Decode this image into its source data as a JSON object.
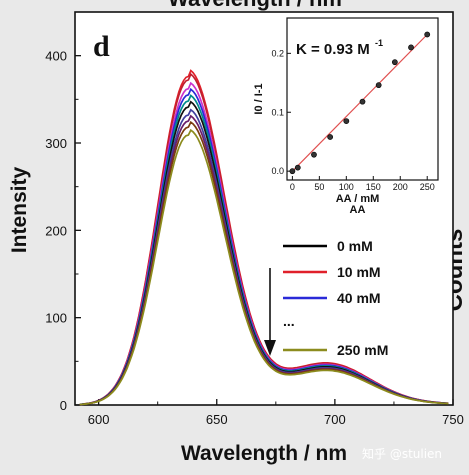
{
  "top_title_cutoff": "Wavelength / nm",
  "right_label_cutoff": "Counts",
  "panel_letter": "d",
  "watermark": "知乎 @stulien",
  "chart_data": {
    "type": "line",
    "xlabel": "Wavelength / nm",
    "ylabel": "Intensity",
    "xlim": [
      590,
      750
    ],
    "ylim": [
      0,
      450
    ],
    "xticks": [
      600,
      650,
      700,
      750
    ],
    "yticks": [
      0,
      100,
      200,
      300,
      400
    ],
    "peak_x": 638,
    "legend": {
      "placement": "right-middle",
      "entries": [
        {
          "label": "0 mM",
          "color": "#000000"
        },
        {
          "label": "10 mM",
          "color": "#e0202a"
        },
        {
          "label": "40 mM",
          "color": "#2a2ad8"
        },
        {
          "label": "...",
          "color": ""
        },
        {
          "label": "250 mM",
          "color": "#8c8c1e"
        }
      ]
    },
    "arrow": {
      "direction": "down",
      "note": "intensity decreases with AA concentration"
    },
    "series": [
      {
        "color": "#e0202a",
        "peak": 376
      },
      {
        "color": "#c02030",
        "peak": 372
      },
      {
        "color": "#cc33cc",
        "peak": 362
      },
      {
        "color": "#2a2ad8",
        "peak": 355
      },
      {
        "color": "#008b8b",
        "peak": 348
      },
      {
        "color": "#111111",
        "peak": 341
      },
      {
        "color": "#4040a0",
        "peak": 332
      },
      {
        "color": "#6a1e6a",
        "peak": 325
      },
      {
        "color": "#7a3c10",
        "peak": 318
      },
      {
        "color": "#8c8c1e",
        "peak": 309
      }
    ],
    "inset": {
      "type": "scatter",
      "xlabel": "AA / mM",
      "xlabel_dup": "AA",
      "ylabel": "I0 / I-1",
      "ylabel_display": "I0 / I-1",
      "annotation": "K = 0.93 M",
      "annotation_sup": "-1",
      "xlim": [
        -10,
        270
      ],
      "ylim": [
        -0.015,
        0.26
      ],
      "xticks": [
        0,
        50,
        100,
        150,
        200,
        250
      ],
      "yticks": [
        0.0,
        0.1,
        0.2
      ],
      "ytick_labels": [
        "0.0",
        "0.1",
        "0.2"
      ],
      "points": [
        {
          "x": 0,
          "y": 0.0
        },
        {
          "x": 10,
          "y": 0.006
        },
        {
          "x": 40,
          "y": 0.028
        },
        {
          "x": 70,
          "y": 0.058
        },
        {
          "x": 100,
          "y": 0.085
        },
        {
          "x": 130,
          "y": 0.118
        },
        {
          "x": 160,
          "y": 0.146
        },
        {
          "x": 190,
          "y": 0.185
        },
        {
          "x": 220,
          "y": 0.21
        },
        {
          "x": 250,
          "y": 0.232
        }
      ],
      "fit": {
        "x": [
          0,
          250
        ],
        "y": [
          0.0,
          0.232
        ],
        "color": "#e05050"
      }
    }
  }
}
